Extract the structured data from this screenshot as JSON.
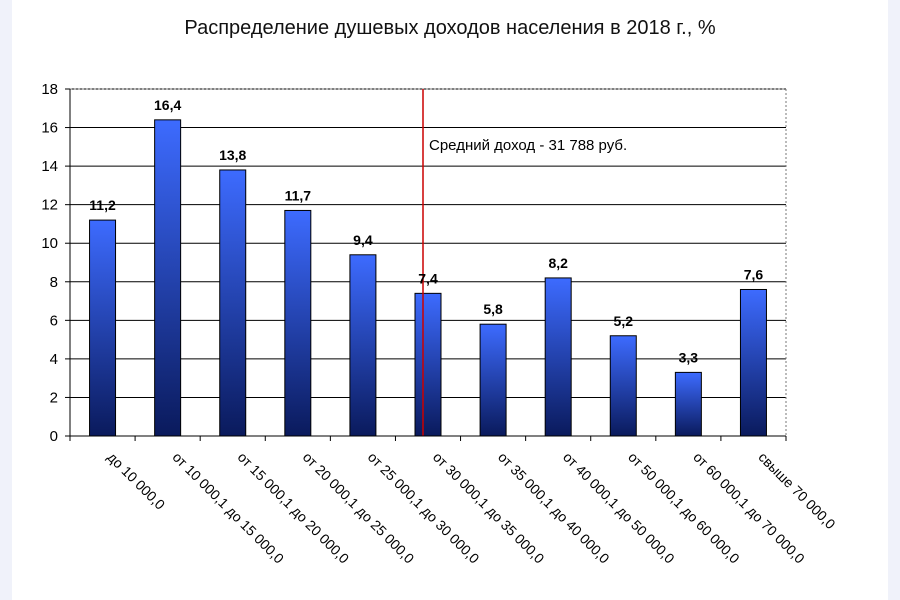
{
  "chart_data": {
    "type": "bar",
    "title": "Распределение душевых доходов населения в 2018 г., %",
    "xlabel": "",
    "ylabel": "",
    "ylim": [
      0,
      18
    ],
    "yticks": [
      0,
      2,
      4,
      6,
      8,
      10,
      12,
      14,
      16,
      18
    ],
    "grid": true,
    "categories": [
      "до 10 000,0",
      "от 10 000,1 до 15 000,0",
      "от 15 000,1 до 20 000,0",
      "от 20 000,1 до 25 000,0",
      "от 25 000,1 до 30 000,0",
      "от 30 000,1 до 35 000,0",
      "от 35 000,1 до 40 000,0",
      "от 40 000,1 до 50 000,0",
      "от 50 000,1 до 60 000,0",
      "от 60 000,1 до 70 000,0",
      "свыше 70 000,0"
    ],
    "values": [
      11.2,
      16.4,
      13.8,
      11.7,
      9.4,
      7.4,
      5.8,
      8.2,
      5.2,
      3.3,
      7.6
    ],
    "value_labels": [
      "11,2",
      "16,4",
      "13,8",
      "11,7",
      "9,4",
      "7,4",
      "5,8",
      "8,2",
      "5,2",
      "3,3",
      "7,6"
    ],
    "bar_color_top": "#3d6bff",
    "bar_color_bottom": "#0a1a5c",
    "reference_line": {
      "category_index": 5,
      "color": "#cc0000",
      "label": "Средний доход - 31 788 руб."
    }
  }
}
